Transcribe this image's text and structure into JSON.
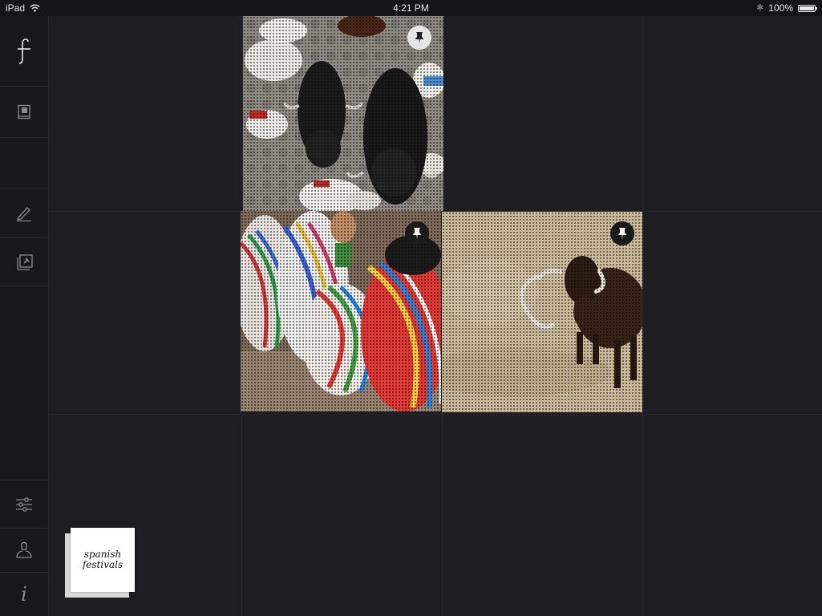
{
  "status_bar": {
    "device": "iPad",
    "time": "4:21 PM",
    "battery": "100%"
  },
  "sidebar": {
    "items": [
      {
        "icon": "logo-icon"
      },
      {
        "icon": "book-icon"
      },
      {
        "icon": "blank"
      },
      {
        "icon": "pen-icon"
      },
      {
        "icon": "pin-stack-icon"
      },
      {
        "icon": "sliders-icon"
      },
      {
        "icon": "user-icon"
      },
      {
        "icon": "info-icon",
        "glyph": "i"
      }
    ]
  },
  "tiles": [
    {
      "subject": "bull run",
      "pinned": true,
      "pin_style": "light"
    },
    {
      "subject": "dancers",
      "pinned": true,
      "pin_style": "dark"
    },
    {
      "subject": "bull in arena",
      "pinned": true,
      "pin_style": "dark"
    }
  ],
  "board": {
    "title_line1": "spanish",
    "title_line2": "festivals"
  },
  "colors": {
    "background": "#1d1d22",
    "sidebar": "#18181c",
    "card": "#ffffff"
  }
}
